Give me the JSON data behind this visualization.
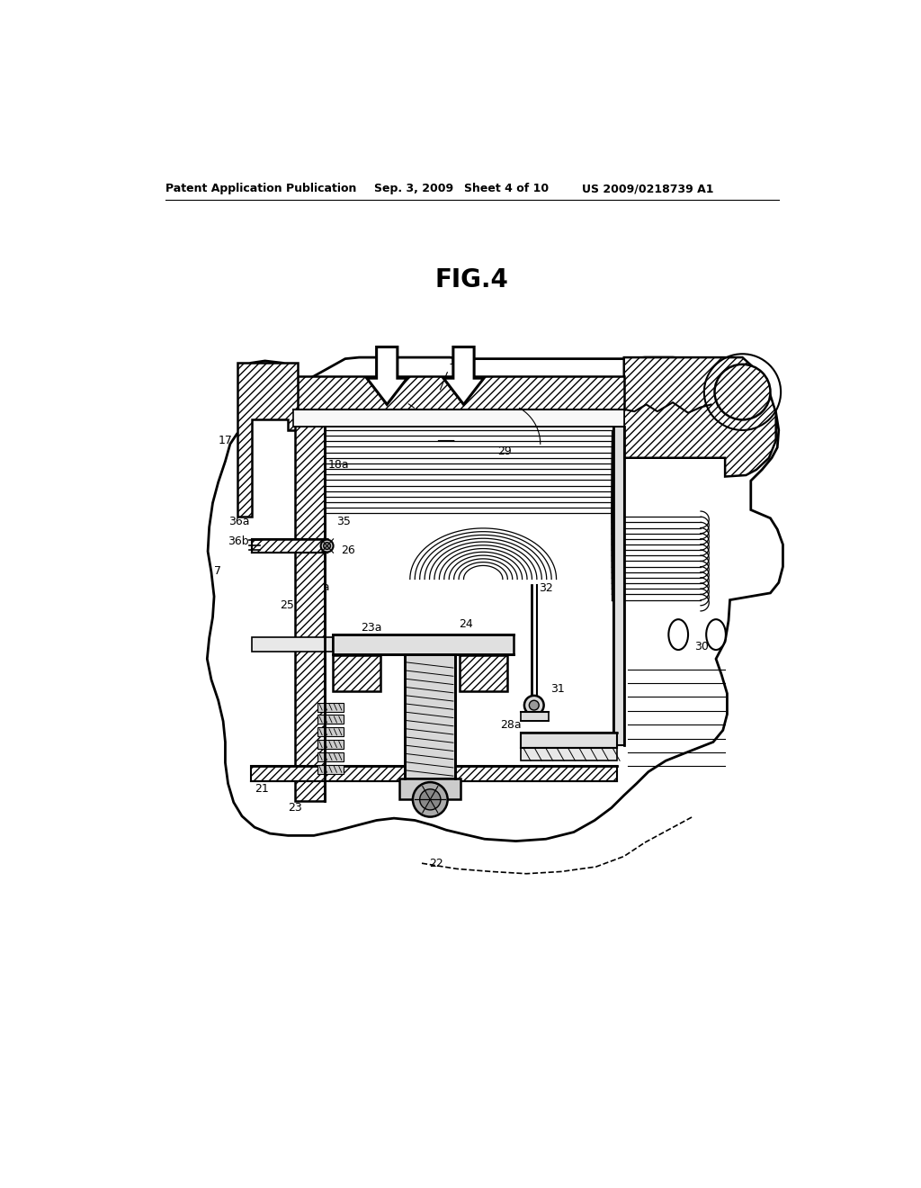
{
  "bg": "#ffffff",
  "lc": "#000000",
  "header_left": "Patent Application Publication",
  "header_date": "Sep. 3, 2009",
  "header_sheet": "Sheet 4 of 10",
  "header_num": "US 2009/0218739 A1",
  "fig_label": "FIG.4"
}
